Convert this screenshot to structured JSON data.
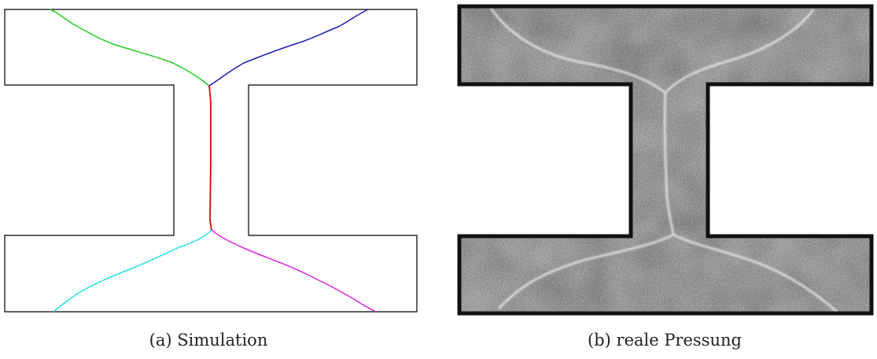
{
  "figure": {
    "panels": [
      {
        "caption": "(a) Simulation",
        "colors": {
          "outline": "#000000",
          "crack_top_left": "#1fcc1f",
          "crack_top_right": "#1a1ab8",
          "crack_center": "#e00000",
          "crack_bottom_left": "#22dede",
          "crack_bottom_right": "#e020e0"
        }
      },
      {
        "caption": "(b) reale Pressung",
        "colors": {
          "outline": "#111111",
          "texture_light": "#e4e4e4",
          "texture_dark": "#6a6a6a",
          "crack": "#f2f2f2"
        }
      }
    ]
  }
}
